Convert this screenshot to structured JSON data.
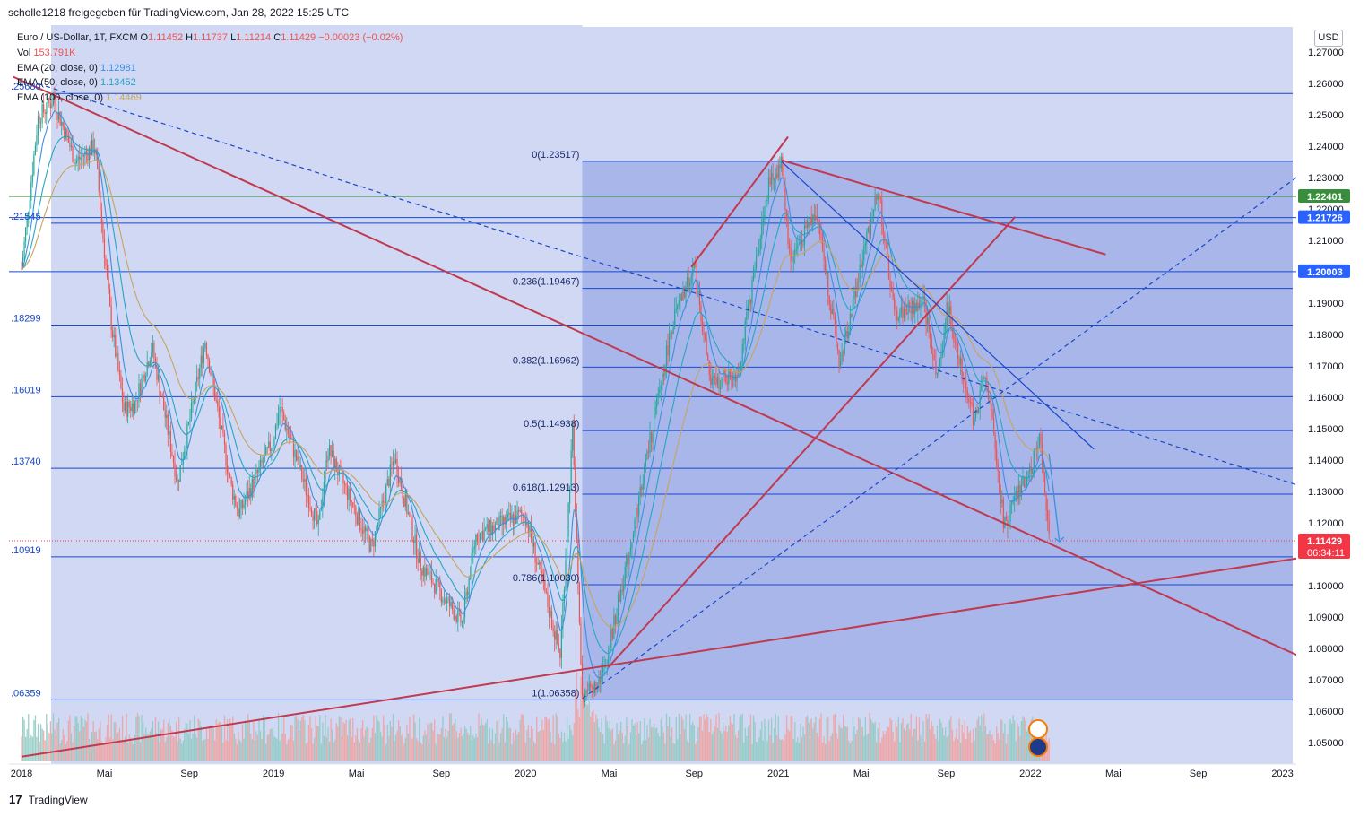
{
  "header": {
    "credit": "scholle1218 freigegeben für TradingView.com, Jan 28, 2022 15:25 UTC"
  },
  "legend": {
    "symbol": "Euro / US-Dollar, 1T, FXCM",
    "open_label": "O",
    "open": "1.11452",
    "high_label": "H",
    "high": "1.11737",
    "low_label": "L",
    "low": "1.11214",
    "close_label": "C",
    "close": "1.11429",
    "change": "−0.00023 (−0.02%)",
    "vol_label": "Vol",
    "vol": "153.791K",
    "ema20_label": "EMA (20, close, 0)",
    "ema20": "1.12981",
    "ema50_label": "EMA (50, close, 0)",
    "ema50": "1.13452",
    "ema100_label": "EMA (100, close, 0)",
    "ema100": "1.14469"
  },
  "currency_button": "USD",
  "footer": {
    "logo_glyph": "17",
    "brand": "TradingView"
  },
  "colors": {
    "background": "#ffffff",
    "zone_light": "#d0d8f4",
    "zone_dark": "#a9b6ea",
    "fib_line": "#1848cc",
    "trend_red": "#c0394f",
    "ema20": "#3d8fe0",
    "ema50": "#26a6c4",
    "ema100": "#c7a45e",
    "candle_up": "#26a69a",
    "candle_down": "#ef5350",
    "label_blue": "#2962ff",
    "label_green": "#388e3c",
    "label_red": "#f23645",
    "price_text": "#131722"
  },
  "chart_data": {
    "type": "candlestick",
    "symbol": "Euro / US-Dollar",
    "timeframe": "1T",
    "source": "FXCM",
    "x_range": [
      "2018-01-01",
      "2023-02-15"
    ],
    "ylim": [
      1.044,
      1.276
    ],
    "y_axis_ticks": [
      1.27,
      1.26,
      1.25,
      1.24,
      1.23,
      1.22,
      1.21,
      1.2,
      1.19,
      1.18,
      1.17,
      1.16,
      1.15,
      1.14,
      1.13,
      1.12,
      1.11,
      1.1,
      1.09,
      1.08,
      1.07,
      1.06,
      1.05
    ],
    "x_axis_ticks": [
      {
        "label": "2018",
        "date": "2018-01-01"
      },
      {
        "label": "Mai",
        "date": "2018-05-01"
      },
      {
        "label": "Sep",
        "date": "2018-09-01"
      },
      {
        "label": "2019",
        "date": "2019-01-01"
      },
      {
        "label": "Mai",
        "date": "2019-05-01"
      },
      {
        "label": "Sep",
        "date": "2019-09-01"
      },
      {
        "label": "2020",
        "date": "2020-01-01"
      },
      {
        "label": "Mai",
        "date": "2020-05-01"
      },
      {
        "label": "Sep",
        "date": "2020-09-01"
      },
      {
        "label": "2021",
        "date": "2021-01-01"
      },
      {
        "label": "Mai",
        "date": "2021-05-01"
      },
      {
        "label": "Sep",
        "date": "2021-09-01"
      },
      {
        "label": "2022",
        "date": "2022-01-01"
      },
      {
        "label": "Mai",
        "date": "2022-05-01"
      },
      {
        "label": "Sep",
        "date": "2022-09-01"
      },
      {
        "label": "2023",
        "date": "2023-01-01"
      }
    ],
    "price_path": [
      [
        "2018-01-01",
        1.201
      ],
      [
        "2018-01-25",
        1.249
      ],
      [
        "2018-02-16",
        1.255
      ],
      [
        "2018-03-20",
        1.235
      ],
      [
        "2018-04-17",
        1.24
      ],
      [
        "2018-05-10",
        1.185
      ],
      [
        "2018-05-29",
        1.156
      ],
      [
        "2018-06-14",
        1.158
      ],
      [
        "2018-07-09",
        1.176
      ],
      [
        "2018-08-15",
        1.133
      ],
      [
        "2018-09-24",
        1.178
      ],
      [
        "2018-10-31",
        1.132
      ],
      [
        "2018-11-12",
        1.123
      ],
      [
        "2018-12-31",
        1.146
      ],
      [
        "2019-01-10",
        1.157
      ],
      [
        "2019-03-07",
        1.118
      ],
      [
        "2019-03-20",
        1.144
      ],
      [
        "2019-05-23",
        1.112
      ],
      [
        "2019-06-25",
        1.141
      ],
      [
        "2019-08-01",
        1.107
      ],
      [
        "2019-10-01",
        1.088
      ],
      [
        "2019-10-21",
        1.116
      ],
      [
        "2019-12-31",
        1.123
      ],
      [
        "2020-02-20",
        1.078
      ],
      [
        "2020-03-09",
        1.149
      ],
      [
        "2020-03-23",
        1.064
      ],
      [
        "2020-04-24",
        1.073
      ],
      [
        "2020-05-29",
        1.11
      ],
      [
        "2020-07-31",
        1.183
      ],
      [
        "2020-09-01",
        1.202
      ],
      [
        "2020-09-25",
        1.164
      ],
      [
        "2020-11-04",
        1.168
      ],
      [
        "2020-12-17",
        1.227
      ],
      [
        "2021-01-06",
        1.235
      ],
      [
        "2021-01-18",
        1.203
      ],
      [
        "2021-02-25",
        1.22
      ],
      [
        "2021-03-31",
        1.17
      ],
      [
        "2021-05-25",
        1.227
      ],
      [
        "2021-06-18",
        1.186
      ],
      [
        "2021-07-30",
        1.19
      ],
      [
        "2021-08-20",
        1.166
      ],
      [
        "2021-09-03",
        1.189
      ],
      [
        "2021-10-12",
        1.152
      ],
      [
        "2021-10-28",
        1.169
      ],
      [
        "2021-11-24",
        1.119
      ],
      [
        "2021-12-31",
        1.137
      ],
      [
        "2022-01-14",
        1.148
      ],
      [
        "2022-01-28",
        1.114
      ]
    ],
    "ema": [
      {
        "name": "EMA (20, close, 0)",
        "last": 1.12981
      },
      {
        "name": "EMA (50, close, 0)",
        "last": 1.13452
      },
      {
        "name": "EMA (100, close, 0)",
        "last": 1.14469
      }
    ],
    "volume_last": "153.791K",
    "fib_retracement": {
      "from": {
        "date": "2020-03-23",
        "price": 1.06358
      },
      "to": {
        "date": "2021-01-06",
        "price": 1.23517
      },
      "levels": [
        {
          "label": "0(1.23517)",
          "price": 1.23517
        },
        {
          "label": "0.236(1.19467)",
          "price": 1.19467
        },
        {
          "label": "0.382(1.16962)",
          "price": 1.16962
        },
        {
          "label": "0.5(1.14938)",
          "price": 1.14938
        },
        {
          "label": "0.618(1.12913)",
          "price": 1.12913
        },
        {
          "label": "0.786(1.10030)",
          "price": 1.1003
        },
        {
          "label": "1(1.06358)",
          "price": 1.06358
        }
      ]
    },
    "horizontal_levels": [
      {
        "label": ".25680",
        "price": 1.2568
      },
      {
        "label": ".21545",
        "price": 1.21545
      },
      {
        "label": ".18299",
        "price": 1.18299
      },
      {
        "label": ".16019",
        "price": 1.16019
      },
      {
        "label": ".13740",
        "price": 1.1374
      },
      {
        "label": ".10919",
        "price": 1.10919
      },
      {
        "label": ".06359",
        "price": 1.06359
      }
    ],
    "price_labels": [
      {
        "text": "1.22401",
        "price": 1.22401,
        "color": "green"
      },
      {
        "text": "1.21726",
        "price": 1.21726,
        "color": "blue"
      },
      {
        "text": "1.20003",
        "price": 1.20003,
        "color": "blue"
      },
      {
        "text": "1.11429",
        "price": 1.11429,
        "color": "red",
        "countdown": "06:34:11"
      }
    ],
    "trendlines": [
      {
        "style": "solid",
        "color": "red",
        "from": [
          "2017-12-20",
          1.2621
        ],
        "to": [
          "2023-02-15",
          1.0755
        ]
      },
      {
        "style": "solid",
        "color": "red",
        "from": [
          "2018-01-01",
          1.0455
        ],
        "to": [
          "2023-02-15",
          1.1095
        ]
      },
      {
        "style": "dashed",
        "color": "blue",
        "from": [
          "2018-01-25",
          1.2599
        ],
        "to": [
          "2023-02-15",
          1.1304
        ]
      },
      {
        "style": "dashed",
        "color": "blue",
        "from": [
          "2020-03-23",
          1.064
        ],
        "to": [
          "2023-02-15",
          1.234
        ]
      },
      {
        "style": "solid",
        "color": "red",
        "from": [
          "2020-04-30",
          1.074
        ],
        "to": [
          "2021-12-10",
          1.2175
        ]
      },
      {
        "style": "solid",
        "color": "red",
        "from": [
          "2020-08-28",
          1.2015
        ],
        "to": [
          "2021-01-15",
          1.243
        ]
      },
      {
        "style": "solid",
        "color": "red",
        "from": [
          "2021-01-06",
          1.2355
        ],
        "to": [
          "2022-04-20",
          1.2055
        ]
      },
      {
        "style": "solid",
        "color": "blue",
        "from": [
          "2021-01-06",
          1.235
        ],
        "to": [
          "2022-04-03",
          1.1435
        ]
      }
    ],
    "projection_arrow": {
      "from": [
        "2022-01-28",
        1.142
      ],
      "to": [
        "2022-02-12",
        1.114
      ]
    }
  }
}
